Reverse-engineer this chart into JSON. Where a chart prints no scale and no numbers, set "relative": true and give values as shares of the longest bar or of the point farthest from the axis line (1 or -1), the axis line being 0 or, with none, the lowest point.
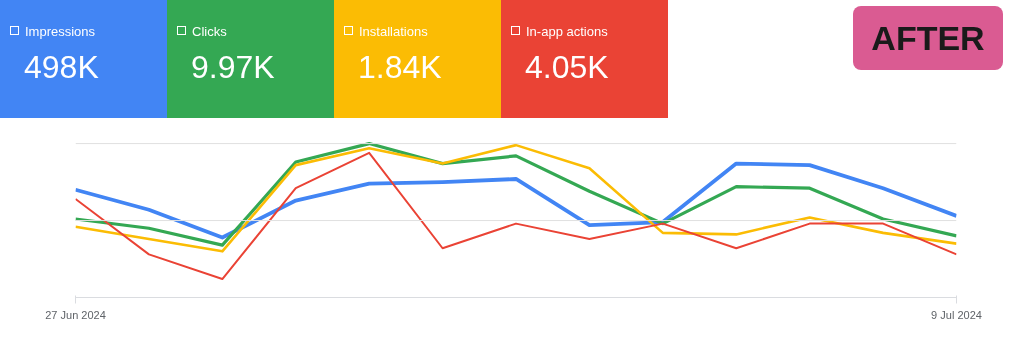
{
  "chart_data": {
    "type": "line",
    "relative": true,
    "ref_lines": [
      {
        "axis": "y",
        "value": 0.5,
        "color": "#e0e0e0"
      },
      {
        "axis": "y",
        "value": 1.0,
        "color": "#e0e0e0"
      }
    ],
    "legend": "top left",
    "marker": "none",
    "line_style": "solid",
    "categories": [
      "27 Jun 2024",
      null,
      null,
      null,
      null,
      null,
      null,
      null,
      null,
      null,
      null,
      null,
      "9 Jul 2024"
    ],
    "series": [
      {
        "name": "Impressions",
        "color": "#4285f4",
        "values": [
          0.7,
          0.57,
          0.39,
          0.63,
          0.74,
          0.75,
          0.77,
          0.47,
          0.49,
          0.87,
          0.86,
          0.71,
          0.53
        ]
      },
      {
        "name": "Clicks",
        "color": "#34a853",
        "values": [
          0.51,
          0.45,
          0.34,
          0.88,
          1.0,
          0.87,
          0.92,
          0.69,
          0.48,
          0.72,
          0.71,
          0.51,
          0.4
        ]
      },
      {
        "name": "Installations",
        "color": "#fbbc04",
        "values": [
          0.46,
          0.38,
          0.3,
          0.86,
          0.97,
          0.87,
          0.99,
          0.84,
          0.42,
          0.41,
          0.52,
          0.42,
          0.35
        ]
      },
      {
        "name": "In-app actions",
        "color": "#ea4335",
        "values": [
          0.64,
          0.28,
          0.12,
          0.71,
          0.94,
          0.32,
          0.48,
          0.38,
          0.48,
          0.32,
          0.48,
          0.48,
          0.28
        ]
      }
    ],
    "annotations": [
      "498K",
      "9.97K",
      "1.84K",
      "4.05K",
      "AFTER"
    ]
  }
}
